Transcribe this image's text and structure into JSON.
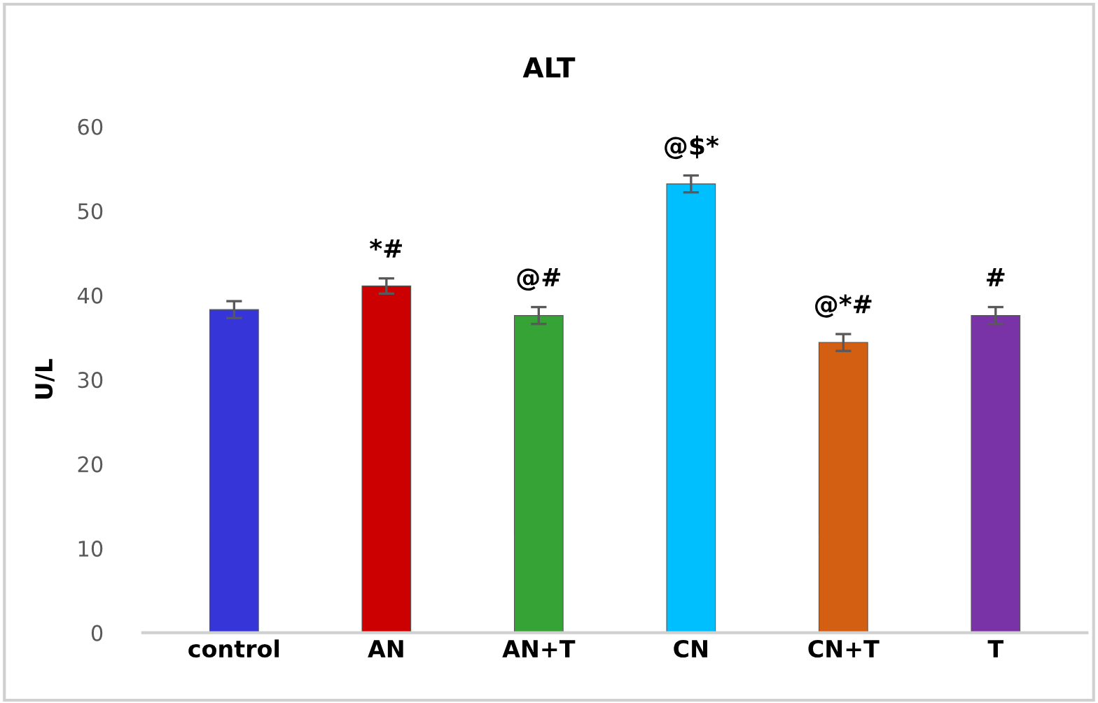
{
  "chart_data": {
    "type": "bar",
    "title": "ALT",
    "ylabel": "U/L",
    "categories": [
      "control",
      "AN",
      "AN+T",
      "CN",
      "CN+T",
      "T"
    ],
    "values": [
      38.3,
      41.1,
      37.6,
      53.2,
      34.4,
      37.6
    ],
    "colors": [
      "#3535d8",
      "#cc0000",
      "#36a336",
      "#00bfff",
      "#d35f12",
      "#7a33a6"
    ],
    "errors": [
      1.0,
      0.9,
      1.0,
      1.0,
      1.0,
      1.0
    ],
    "ylim": [
      0,
      60
    ],
    "yticks": [
      0,
      10,
      20,
      30,
      40,
      50,
      60
    ],
    "grid": false,
    "annotations": [
      {
        "text": "*#",
        "x": "AN",
        "y": 42.0
      },
      {
        "text": "@#",
        "x": "AN+T",
        "y": 38.6
      },
      {
        "text": "@$*",
        "x": "CN",
        "y": 54.2
      },
      {
        "text": "@*#",
        "x": "CN+T",
        "y": 35.4
      },
      {
        "text": "#",
        "x": "T",
        "y": 38.6
      }
    ]
  }
}
